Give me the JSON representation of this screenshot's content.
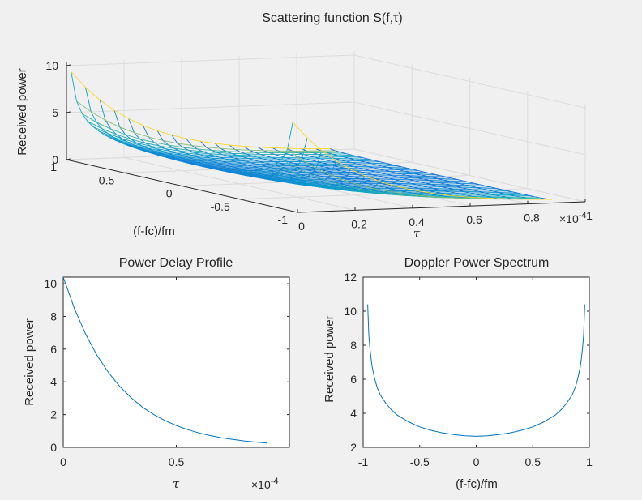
{
  "figure": {
    "background": "#f0f0f0",
    "axes_color": "#262626",
    "line_color": "#0072bd",
    "grid_color": "#dcdcdc"
  },
  "chart_data": [
    {
      "type": "surface",
      "title": "Scattering function S(f,τ)",
      "xlabel": "(f-fc)/fm",
      "ylabel": "τ",
      "zlabel": "Received power",
      "xlim": [
        -1,
        1
      ],
      "ylim": [
        0,
        1
      ],
      "y_multiplier": "×10",
      "y_exponent": "-4",
      "zlim": [
        0,
        10
      ],
      "x_ticks": [
        "1",
        "0.5",
        "0",
        "-0.5",
        "-1"
      ],
      "y_ticks": [
        "0",
        "0.2",
        "0.4",
        "0.6",
        "0.8",
        "1"
      ],
      "z_ticks": [
        "0",
        "5",
        "10"
      ],
      "colormap": "parula",
      "grid": true,
      "description_values": {
        "peak_at_edges_tau0": 10.4,
        "min_at_center_tau0": 2.65,
        "tau_range": [
          0,
          0.9
        ]
      }
    },
    {
      "type": "line",
      "title": "Power Delay Profile",
      "xlabel": "τ",
      "ylabel": "Received power",
      "xlim": [
        0,
        1
      ],
      "x_multiplier": "×10",
      "x_exponent": "-4",
      "ylim": [
        0,
        10.4
      ],
      "x_ticks": [
        "0",
        "0.5"
      ],
      "y_ticks": [
        "0",
        "2",
        "4",
        "6",
        "8",
        "10"
      ],
      "x": [
        0,
        0.05,
        0.1,
        0.15,
        0.2,
        0.25,
        0.3,
        0.35,
        0.4,
        0.45,
        0.5,
        0.55,
        0.6,
        0.65,
        0.7,
        0.75,
        0.8,
        0.85,
        0.9
      ],
      "y": [
        10.4,
        8.46,
        6.89,
        5.61,
        4.57,
        3.72,
        3.03,
        2.46,
        2.0,
        1.63,
        1.33,
        1.08,
        0.88,
        0.72,
        0.58,
        0.48,
        0.39,
        0.32,
        0.26
      ]
    },
    {
      "type": "line",
      "title": "Doppler Power Spectrum",
      "xlabel": "(f-fc)/fm",
      "ylabel": "Received power",
      "xlim": [
        -1,
        1
      ],
      "ylim": [
        2,
        12
      ],
      "x_ticks": [
        "-1",
        "-0.5",
        "0",
        "0.5",
        "1"
      ],
      "y_ticks": [
        "2",
        "4",
        "6",
        "8",
        "10",
        "12"
      ],
      "x": [
        -0.96,
        -0.95,
        -0.94,
        -0.93,
        -0.92,
        -0.9,
        -0.88,
        -0.85,
        -0.8,
        -0.75,
        -0.7,
        -0.6,
        -0.5,
        -0.4,
        -0.3,
        -0.2,
        -0.1,
        0,
        0.1,
        0.2,
        0.3,
        0.4,
        0.5,
        0.6,
        0.7,
        0.75,
        0.8,
        0.85,
        0.88,
        0.9,
        0.92,
        0.93,
        0.94,
        0.95,
        0.96
      ],
      "y": [
        10.4,
        8.6,
        7.8,
        7.2,
        6.7,
        6.1,
        5.6,
        5.1,
        4.6,
        4.2,
        3.9,
        3.5,
        3.2,
        3.0,
        2.85,
        2.75,
        2.68,
        2.65,
        2.68,
        2.75,
        2.85,
        3.0,
        3.2,
        3.5,
        3.9,
        4.2,
        4.6,
        5.1,
        5.6,
        6.1,
        6.7,
        7.2,
        7.8,
        8.6,
        10.4
      ]
    }
  ]
}
